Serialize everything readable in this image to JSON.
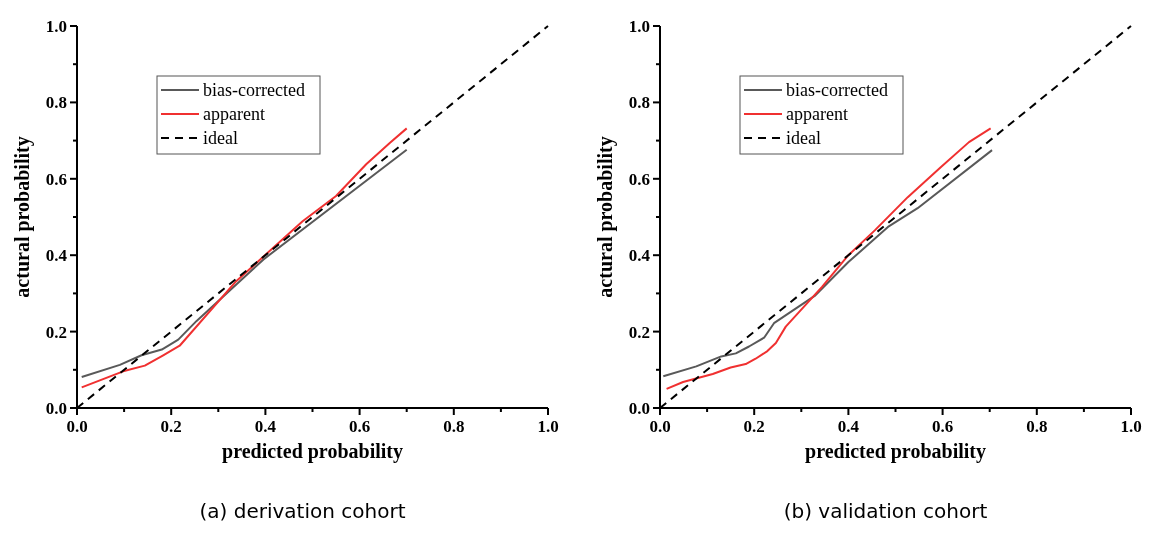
{
  "chart_data": [
    {
      "type": "line",
      "title": "(a) derivation cohort",
      "xlabel": "predicted probability",
      "ylabel": "actural probability",
      "xlim": [
        0,
        1
      ],
      "ylim": [
        0,
        1
      ],
      "xticks": [
        {
          "value": 0,
          "label": "0.0"
        },
        {
          "value": 0.1,
          "label": null
        },
        0.2,
        {
          "value": 0.3,
          "label": null
        },
        0.4,
        {
          "value": 0.5,
          "label": null
        },
        0.6,
        {
          "value": 0.7,
          "label": null
        },
        0.8,
        {
          "value": 0.9,
          "label": null
        },
        {
          "value": 1,
          "label": "1.0"
        }
      ],
      "yticks": [
        {
          "value": 0,
          "label": "0.0"
        },
        {
          "value": 0.1,
          "label": null
        },
        0.2,
        {
          "value": 0.3,
          "label": null
        },
        0.4,
        {
          "value": 0.5,
          "label": null
        },
        0.6,
        {
          "value": 0.7,
          "label": null
        },
        0.8,
        {
          "value": 0.9,
          "label": null
        },
        {
          "value": 1,
          "label": "1.0"
        }
      ],
      "grid": false,
      "legend": "top left",
      "series": [
        {
          "name": "bias-corrected",
          "color": "#595959",
          "x": [
            0.01,
            0.091,
            0.137,
            0.18,
            0.215,
            0.254,
            0.396,
            0.7
          ],
          "values": [
            0.081,
            0.113,
            0.138,
            0.153,
            0.179,
            0.228,
            0.389,
            0.676
          ]
        },
        {
          "name": "apparent",
          "color": "#f03030",
          "x": [
            0.01,
            0.098,
            0.144,
            0.183,
            0.218,
            0.338,
            0.479,
            0.55,
            0.614,
            0.664,
            0.7
          ],
          "values": [
            0.054,
            0.096,
            0.111,
            0.138,
            0.163,
            0.332,
            0.489,
            0.555,
            0.638,
            0.694,
            0.732
          ]
        },
        {
          "name": "ideal",
          "color": "#000000",
          "line_style": "dashed",
          "x": [
            0,
            1
          ],
          "values": [
            0,
            1
          ]
        }
      ]
    },
    {
      "type": "line",
      "title": "(b) validation cohort",
      "xlabel": "predicted probability",
      "ylabel": "actural probability",
      "xlim": [
        0,
        1
      ],
      "ylim": [
        0,
        1
      ],
      "xticks": [
        {
          "value": 0,
          "label": "0.0"
        },
        {
          "value": 0.1,
          "label": null
        },
        0.2,
        {
          "value": 0.3,
          "label": null
        },
        0.4,
        {
          "value": 0.5,
          "label": null
        },
        0.6,
        {
          "value": 0.7,
          "label": null
        },
        0.8,
        {
          "value": 0.9,
          "label": null
        },
        {
          "value": 1,
          "label": "1.0"
        }
      ],
      "yticks": [
        {
          "value": 0,
          "label": "0.0"
        },
        {
          "value": 0.1,
          "label": null
        },
        0.2,
        {
          "value": 0.3,
          "label": null
        },
        0.4,
        {
          "value": 0.5,
          "label": null
        },
        0.6,
        {
          "value": 0.7,
          "label": null
        },
        0.8,
        {
          "value": 0.9,
          "label": null
        },
        {
          "value": 1,
          "label": "1.0"
        }
      ],
      "grid": false,
      "legend": "top left",
      "series": [
        {
          "name": "bias-corrected",
          "color": "#595959",
          "x": [
            0.007,
            0.077,
            0.13,
            0.161,
            0.189,
            0.221,
            0.242,
            0.33,
            0.4,
            0.484,
            0.547,
            0.705
          ],
          "values": [
            0.083,
            0.109,
            0.135,
            0.143,
            0.161,
            0.184,
            0.222,
            0.295,
            0.382,
            0.474,
            0.523,
            0.675
          ]
        },
        {
          "name": "apparent",
          "color": "#f03030",
          "x": [
            0.014,
            0.049,
            0.112,
            0.15,
            0.182,
            0.203,
            0.228,
            0.246,
            0.267,
            0.344,
            0.4,
            0.456,
            0.526,
            0.596,
            0.656,
            0.702
          ],
          "values": [
            0.05,
            0.068,
            0.089,
            0.106,
            0.115,
            0.129,
            0.149,
            0.17,
            0.213,
            0.317,
            0.4,
            0.465,
            0.552,
            0.63,
            0.696,
            0.732
          ]
        },
        {
          "name": "ideal",
          "color": "#000000",
          "line_style": "dashed",
          "x": [
            0,
            1
          ],
          "values": [
            0,
            1
          ]
        }
      ]
    }
  ]
}
